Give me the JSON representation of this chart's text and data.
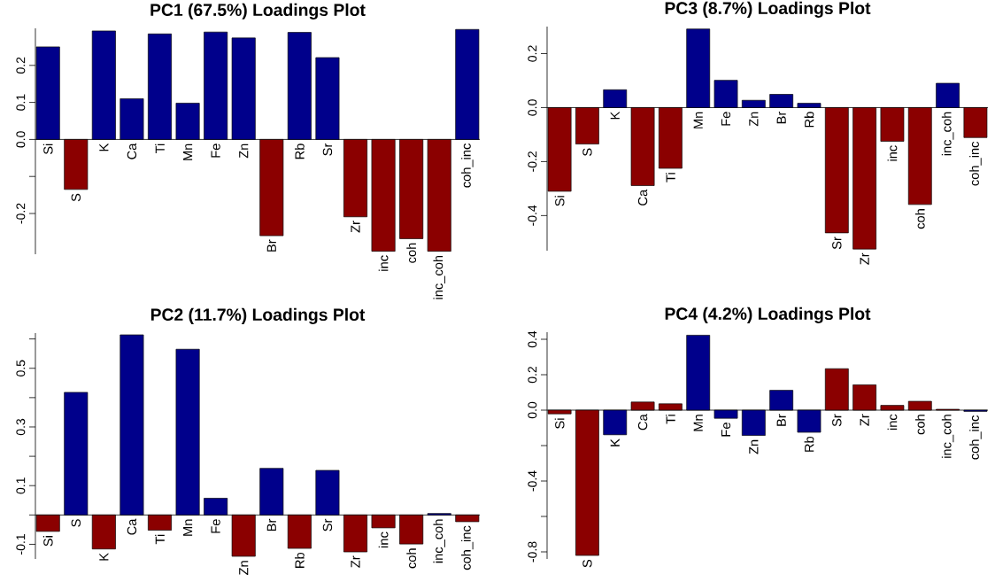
{
  "chart_data": [
    {
      "type": "bar",
      "title": "PC1 (67.5%) Loadings Plot",
      "categories": [
        "Si",
        "S",
        "K",
        "Ca",
        "Ti",
        "Mn",
        "Fe",
        "Zn",
        "Br",
        "Rb",
        "Sr",
        "Zr",
        "inc",
        "coh",
        "inc_coh",
        "coh_inc"
      ],
      "values": [
        0.25,
        -0.135,
        0.293,
        0.11,
        0.285,
        0.098,
        0.29,
        0.274,
        -0.26,
        0.289,
        0.221,
        -0.209,
        -0.302,
        -0.268,
        -0.302,
        0.297
      ],
      "colors": [
        "#00008b",
        "#8b0000",
        "#00008b",
        "#00008b",
        "#00008b",
        "#00008b",
        "#00008b",
        "#00008b",
        "#8b0000",
        "#00008b",
        "#00008b",
        "#8b0000",
        "#8b0000",
        "#8b0000",
        "#8b0000",
        "#00008b"
      ],
      "ylim": [
        -0.31,
        0.3
      ],
      "yticks": [
        -0.2,
        {
          "value": -0.1,
          "label": null
        },
        {
          "value": 0.0,
          "label": "0.0"
        },
        0.1,
        0.2
      ]
    },
    {
      "type": "bar",
      "title": "PC3 (8.7%) Loadings Plot",
      "categories": [
        "Si",
        "S",
        "K",
        "Ca",
        "Ti",
        "Mn",
        "Fe",
        "Zn",
        "Br",
        "Rb",
        "Sr",
        "Zr",
        "inc",
        "coh",
        "inc_coh",
        "coh_inc"
      ],
      "values": [
        -0.31,
        -0.135,
        0.066,
        -0.289,
        -0.225,
        0.291,
        0.101,
        0.027,
        0.049,
        0.016,
        -0.464,
        -0.524,
        -0.125,
        -0.359,
        0.09,
        -0.111
      ],
      "colors": [
        "#8b0000",
        "#8b0000",
        "#00008b",
        "#8b0000",
        "#8b0000",
        "#00008b",
        "#00008b",
        "#00008b",
        "#00008b",
        "#00008b",
        "#8b0000",
        "#8b0000",
        "#8b0000",
        "#8b0000",
        "#00008b",
        "#8b0000"
      ],
      "ylim": [
        -0.53,
        0.3
      ],
      "yticks": [
        -0.4,
        -0.2,
        {
          "value": 0.0,
          "label": "0.0"
        },
        0.2
      ]
    },
    {
      "type": "bar",
      "title": "PC2 (11.7%) Loadings Plot",
      "categories": [
        "Si",
        "S",
        "K",
        "Ca",
        "Ti",
        "Mn",
        "Fe",
        "Zn",
        "Br",
        "Rb",
        "Sr",
        "Zr",
        "inc",
        "coh",
        "inc_coh",
        "coh_inc"
      ],
      "values": [
        -0.056,
        0.418,
        -0.116,
        0.614,
        -0.052,
        0.565,
        0.057,
        -0.141,
        0.159,
        -0.114,
        0.152,
        -0.126,
        -0.044,
        -0.099,
        0.005,
        -0.023
      ],
      "colors": [
        "#8b0000",
        "#00008b",
        "#8b0000",
        "#00008b",
        "#8b0000",
        "#00008b",
        "#00008b",
        "#8b0000",
        "#00008b",
        "#8b0000",
        "#00008b",
        "#8b0000",
        "#8b0000",
        "#8b0000",
        "#00008b",
        "#8b0000"
      ],
      "ylim": [
        -0.15,
        0.62
      ],
      "yticks": [
        -0.1,
        {
          "value": 0.0,
          "label": null
        },
        0.1,
        {
          "value": 0.2,
          "label": null
        },
        0.3,
        {
          "value": 0.4,
          "label": null
        },
        0.5,
        {
          "value": 0.6,
          "label": null
        }
      ]
    },
    {
      "type": "bar",
      "title": "PC4 (4.2%) Loadings Plot",
      "categories": [
        "Si",
        "S",
        "K",
        "Ca",
        "Ti",
        "Mn",
        "Fe",
        "Zn",
        "Br",
        "Rb",
        "Sr",
        "Zr",
        "inc",
        "coh",
        "inc_coh",
        "coh_inc"
      ],
      "values": [
        -0.021,
        -0.82,
        -0.139,
        0.046,
        0.036,
        0.423,
        -0.046,
        -0.143,
        0.112,
        -0.125,
        0.234,
        0.143,
        0.027,
        0.05,
        0.005,
        -0.007
      ],
      "colors": [
        "#8b0000",
        "#8b0000",
        "#00008b",
        "#8b0000",
        "#8b0000",
        "#00008b",
        "#00008b",
        "#00008b",
        "#00008b",
        "#00008b",
        "#8b0000",
        "#8b0000",
        "#8b0000",
        "#8b0000",
        "#8b0000",
        "#00008b"
      ],
      "ylim": [
        -0.84,
        0.44
      ],
      "yticks": [
        -0.8,
        {
          "value": -0.6,
          "label": null
        },
        -0.4,
        {
          "value": -0.2,
          "label": null
        },
        {
          "value": 0.0,
          "label": "0.0"
        },
        0.2,
        0.4
      ]
    }
  ]
}
